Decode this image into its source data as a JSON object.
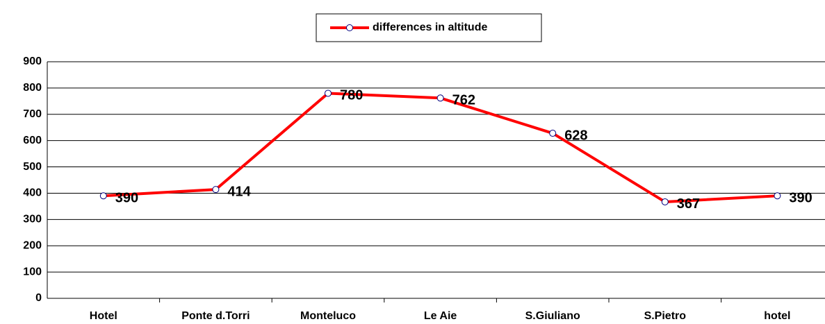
{
  "chart_data": {
    "type": "line",
    "categories": [
      "Hotel",
      "Ponte d.Torri",
      "Monteluco",
      "Le Aie",
      "S.Giuliano",
      "S.Pietro",
      "hotel"
    ],
    "series": [
      {
        "name": "differences in altitude",
        "color": "#ff0000",
        "values": [
          390,
          414,
          780,
          762,
          628,
          367,
          390
        ]
      }
    ],
    "ylim": [
      0,
      900
    ],
    "yticks": [
      0,
      100,
      200,
      300,
      400,
      500,
      600,
      700,
      800,
      900
    ],
    "grid": true,
    "legend": "top"
  }
}
